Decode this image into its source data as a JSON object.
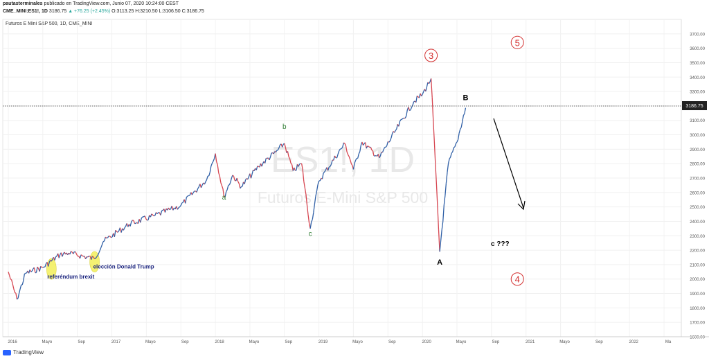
{
  "header": {
    "publisher": "pautasterminales",
    "published_text": "publicado en TradingView.com, Junio 07, 2020 10:24:00 CEST",
    "symbol": "CME_MINI:ES1!, 1D",
    "last": "3186.75",
    "change": "▲ +76.25 (+2.45%)",
    "ohlc": "O:3113.25 H:3210.50 L:3106.50 C:3186.75"
  },
  "chart_title": "Futuros E Mini S&P 500, 1D, CME_MINI",
  "watermark": {
    "symbol": "ES1!, 1D",
    "name": "Futuros E-Mini S&P 500"
  },
  "brand": "TradingView",
  "price_label": "3186.75",
  "colors": {
    "up": "#2f5fa6",
    "down": "#d64550",
    "wave_green": "#2e7d32",
    "wave_red": "#d32f2f",
    "highlight": "#f3ef5a"
  },
  "chart_data": {
    "type": "line",
    "xlabel": "",
    "ylabel": "",
    "ylim": [
      1600,
      3800
    ],
    "x_ticks": [
      "2016",
      "Mayo",
      "Sep",
      "2017",
      "Mayo",
      "Sep",
      "2018",
      "Mayo",
      "Sep",
      "2019",
      "Mayo",
      "Sep",
      "2020",
      "Mayo",
      "Sep",
      "2021",
      "Mayo",
      "Sep",
      "2022",
      "Ma"
    ],
    "y_ticks": [
      "1600.00",
      "1700.00",
      "1800.00",
      "1900.00",
      "2000.00",
      "2100.00",
      "2200.00",
      "2300.00",
      "2400.00",
      "2500.00",
      "2600.00",
      "2700.00",
      "2800.00",
      "2900.00",
      "3000.00",
      "3100.00",
      "3200.00",
      "3300.00",
      "3400.00",
      "3500.00",
      "3600.00",
      "3700.00"
    ],
    "series": [
      {
        "x": [
          "2016-01",
          "2016-02",
          "2016-03",
          "2016-05",
          "2016-07",
          "2016-08",
          "2016-11",
          "2016-12",
          "2017-03",
          "2017-06",
          "2017-09",
          "2017-12",
          "2018-01",
          "2018-02",
          "2018-03",
          "2018-04",
          "2018-06",
          "2018-08",
          "2018-09",
          "2018-10",
          "2018-11",
          "2018-12",
          "2019-01",
          "2019-04",
          "2019-05",
          "2019-06",
          "2019-08",
          "2019-10",
          "2019-12",
          "2020-01",
          "2020-02",
          "2020-03",
          "2020-04",
          "2020-05",
          "2020-06"
        ],
        "values": [
          2050,
          1860,
          2040,
          2080,
          2170,
          2180,
          2140,
          2260,
          2380,
          2440,
          2510,
          2690,
          2870,
          2570,
          2720,
          2640,
          2780,
          2880,
          2940,
          2750,
          2800,
          2350,
          2680,
          2940,
          2760,
          2950,
          2840,
          3040,
          3230,
          3280,
          3390,
          2190,
          2800,
          2950,
          3187
        ]
      }
    ],
    "annotations": [
      {
        "text": "referéndum brexit",
        "x": "2016-06",
        "y": 2060
      },
      {
        "text": "elección Donald Trump",
        "x": "2016-11",
        "y": 2140
      },
      {
        "text": "a",
        "x": "2018-02",
        "y": 2550
      },
      {
        "text": "b",
        "x": "2018-09",
        "y": 3040
      },
      {
        "text": "c",
        "x": "2018-12",
        "y": 2300
      },
      {
        "text": "3",
        "x": "2020-02",
        "y": 3550
      },
      {
        "text": "A",
        "x": "2020-03",
        "y": 2100
      },
      {
        "text": "B",
        "x": "2020-06",
        "y": 3240
      },
      {
        "text": "c ???",
        "x": "2020-10",
        "y": 2230
      },
      {
        "text": "5",
        "x": "2020-12",
        "y": 3640
      },
      {
        "text": "4",
        "x": "2020-12",
        "y": 2000
      }
    ]
  }
}
